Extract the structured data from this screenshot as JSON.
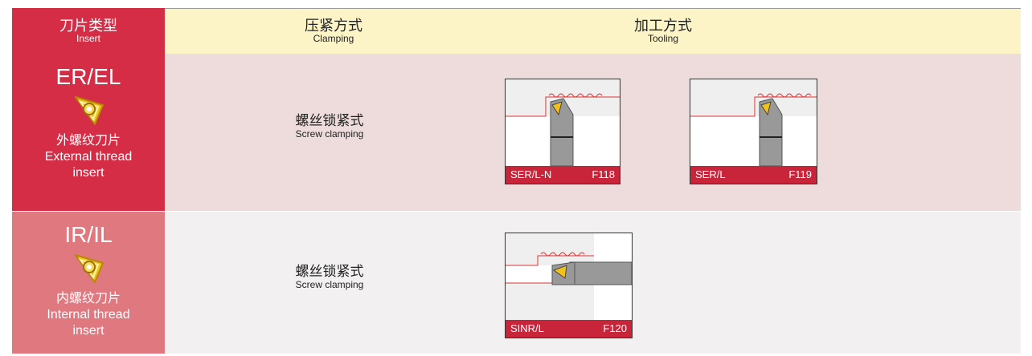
{
  "header": {
    "insert": {
      "zh": "刀片类型",
      "en": "Insert"
    },
    "clamping": {
      "zh": "压紧方式",
      "en": "Clamping"
    },
    "tooling": {
      "zh": "加工方式",
      "en": "Tooling"
    }
  },
  "rows": [
    {
      "code": "ER/EL",
      "name_zh": "外螺纹刀片",
      "name_en": "External thread insert",
      "clamping_zh": "螺丝锁紧式",
      "clamping_en": "Screw clamping",
      "tools": [
        {
          "model": "SER/L-N",
          "page": "F118"
        },
        {
          "model": "SER/L",
          "page": "F119"
        }
      ]
    },
    {
      "code": "IR/IL",
      "name_zh": "内螺纹刀片",
      "name_en": "Internal thread insert",
      "clamping_zh": "螺丝锁紧式",
      "clamping_en": "Screw clamping",
      "tools": [
        {
          "model": "SINR/L",
          "page": "F120"
        }
      ]
    }
  ]
}
